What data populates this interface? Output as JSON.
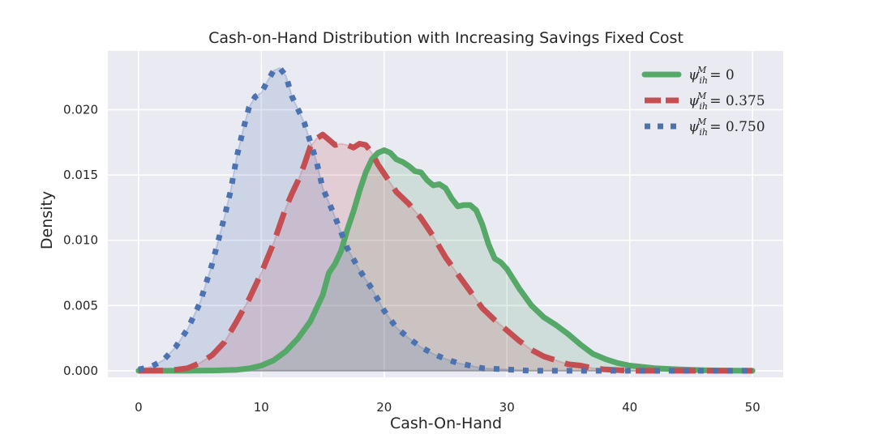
{
  "chart_data": {
    "type": "area",
    "title": "Cash-on-Hand Distribution with Increasing Savings Fixed Cost",
    "xlabel": "Cash-On-Hand",
    "ylabel": "Density",
    "xlim": [
      -2.5,
      52.5
    ],
    "ylim": [
      -0.0005,
      0.0245
    ],
    "xticks": [
      0,
      10,
      20,
      30,
      40,
      50
    ],
    "xtick_labels": [
      "0",
      "10",
      "20",
      "30",
      "40",
      "50"
    ],
    "yticks": [
      0.0,
      0.005,
      0.01,
      0.015,
      0.02
    ],
    "ytick_labels": [
      "0.000",
      "0.005",
      "0.010",
      "0.015",
      "0.020"
    ],
    "grid": true,
    "legend_position": "top-right",
    "series": [
      {
        "name": "ψ_ih^M = 0",
        "legend": {
          "symbol": "ψ",
          "sub": "ih",
          "sup": "M",
          "rhs": "= 0"
        },
        "color": "#55a868",
        "style": "solid",
        "x": [
          0,
          2,
          4,
          6,
          8,
          9,
          10,
          11,
          12,
          13,
          14,
          15,
          15.5,
          16,
          16.5,
          17,
          17.5,
          18,
          18.5,
          19,
          19.5,
          20,
          20.5,
          21,
          21.5,
          22,
          22.5,
          23,
          23.5,
          24,
          24.5,
          25,
          25.5,
          26,
          26.5,
          27,
          27.5,
          28,
          28.5,
          29,
          29.5,
          30,
          31,
          32,
          33,
          34,
          35,
          36,
          37,
          38,
          39,
          40,
          42,
          44,
          46,
          48,
          50
        ],
        "y": [
          0.0,
          0.0,
          0.0,
          2e-05,
          8e-05,
          0.00018,
          0.0004,
          0.0008,
          0.0015,
          0.0025,
          0.0038,
          0.0058,
          0.0075,
          0.0082,
          0.0092,
          0.0108,
          0.0122,
          0.0138,
          0.0152,
          0.0162,
          0.0167,
          0.0169,
          0.0167,
          0.0162,
          0.016,
          0.0157,
          0.0153,
          0.0152,
          0.0146,
          0.0142,
          0.0143,
          0.014,
          0.0132,
          0.0126,
          0.0127,
          0.0127,
          0.0123,
          0.0112,
          0.0097,
          0.0086,
          0.0083,
          0.0078,
          0.0063,
          0.005,
          0.0041,
          0.0035,
          0.0028,
          0.002,
          0.0013,
          0.0009,
          0.0006,
          0.0004,
          0.0002,
          0.0001,
          4e-05,
          1e-05,
          0.0
        ]
      },
      {
        "name": "ψ_ih^M = 0.375",
        "legend": {
          "symbol": "ψ",
          "sub": "ih",
          "sup": "M",
          "rhs": "= 0.375"
        },
        "color": "#c44e52",
        "style": "dashed",
        "x": [
          0,
          2,
          3,
          4,
          5,
          6,
          7,
          8,
          9,
          10,
          11,
          12,
          12.5,
          13,
          13.5,
          14,
          14.5,
          15,
          15.5,
          16,
          16.5,
          17,
          17.5,
          18,
          18.5,
          19,
          19.5,
          20,
          21,
          22,
          23,
          24,
          25,
          26,
          27,
          28,
          29,
          30,
          31,
          32,
          33,
          34,
          35,
          36,
          37,
          38,
          40,
          42,
          44,
          46,
          48,
          50
        ],
        "y": [
          0.0,
          2e-05,
          8e-05,
          0.0002,
          0.0006,
          0.0012,
          0.0022,
          0.0038,
          0.0055,
          0.0075,
          0.0098,
          0.0125,
          0.0136,
          0.0146,
          0.0158,
          0.0172,
          0.0178,
          0.0181,
          0.0177,
          0.0173,
          0.0174,
          0.0173,
          0.0171,
          0.0174,
          0.0173,
          0.0167,
          0.0158,
          0.0151,
          0.0137,
          0.0128,
          0.0117,
          0.0103,
          0.0087,
          0.0074,
          0.0061,
          0.0048,
          0.0039,
          0.0031,
          0.0023,
          0.0016,
          0.0011,
          0.0008,
          0.0005,
          0.0004,
          0.0002,
          0.0001,
          0.0,
          0.0,
          0.0,
          0.0,
          0.0,
          0.0
        ]
      },
      {
        "name": "ψ_ih^M = 0.750",
        "legend": {
          "symbol": "ψ",
          "sub": "ih",
          "sup": "M",
          "rhs": "= 0.750"
        },
        "color": "#4c72b0",
        "style": "dotted",
        "x": [
          0,
          1,
          2,
          3,
          4,
          5,
          6,
          7,
          7.5,
          8,
          8.5,
          9,
          9.5,
          10,
          10.5,
          11,
          11.5,
          12,
          12.5,
          13,
          13.5,
          14,
          14.5,
          15,
          16,
          17,
          18,
          19,
          20,
          21,
          22,
          23,
          24,
          25,
          26,
          27,
          28,
          30,
          32,
          34,
          36,
          40,
          45,
          50
        ],
        "y": [
          0.0001,
          0.0003,
          0.0008,
          0.0018,
          0.0032,
          0.0052,
          0.0082,
          0.0118,
          0.0138,
          0.0164,
          0.0184,
          0.0202,
          0.021,
          0.0213,
          0.0222,
          0.023,
          0.0232,
          0.0226,
          0.021,
          0.02,
          0.019,
          0.0175,
          0.016,
          0.014,
          0.0118,
          0.0094,
          0.0077,
          0.0063,
          0.0046,
          0.0033,
          0.0025,
          0.0018,
          0.0013,
          0.0009,
          0.0006,
          0.0004,
          0.0002,
          0.0001,
          0.0,
          0.0,
          0.0,
          0.0,
          0.0,
          0.0
        ]
      }
    ]
  }
}
